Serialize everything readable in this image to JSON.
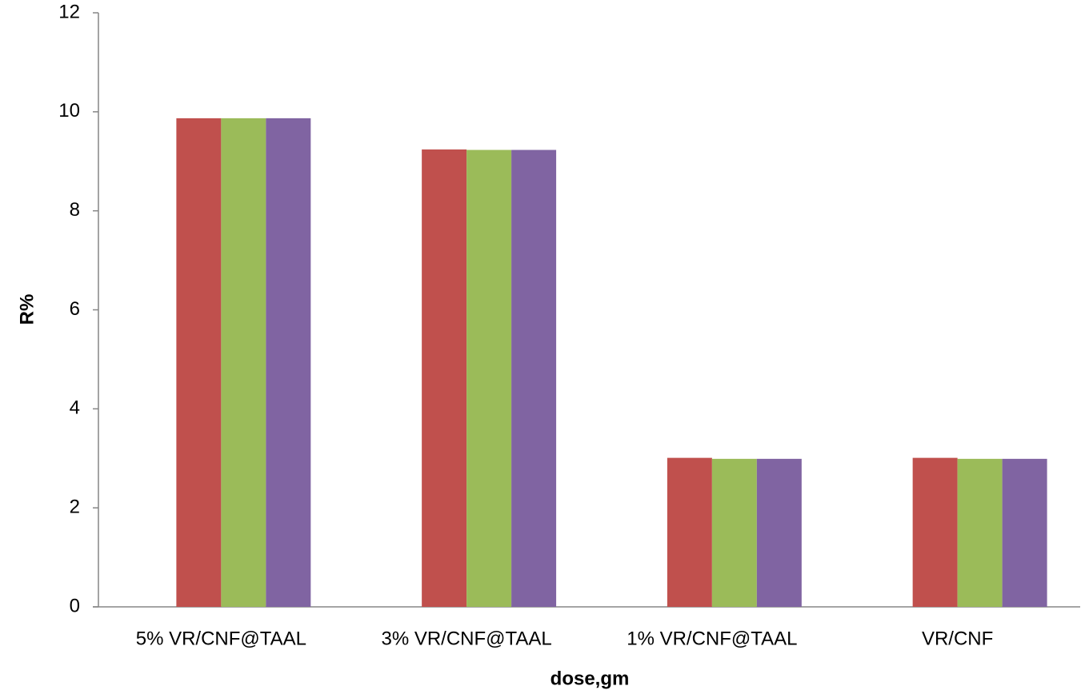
{
  "chart_data": {
    "type": "bar",
    "y_label": "R%",
    "x_label": "dose,gm",
    "categories": [
      "5% VR/CNF@TAAL",
      "3% VR/CNF@TAAL",
      "1% VR/CNF@TAAL",
      "VR/CNF"
    ],
    "series": [
      {
        "color": "#c0504d",
        "values": [
          9.87,
          9.24,
          3.01,
          3.01
        ]
      },
      {
        "color": "#9bbb59",
        "values": [
          9.87,
          9.23,
          2.99,
          2.99
        ]
      },
      {
        "color": "#8064a2",
        "values": [
          9.87,
          9.23,
          2.99,
          2.99
        ]
      }
    ],
    "ylim": [
      0,
      12
    ],
    "yticks": [
      0,
      2,
      4,
      6,
      8,
      10,
      12
    ],
    "grid": false
  }
}
